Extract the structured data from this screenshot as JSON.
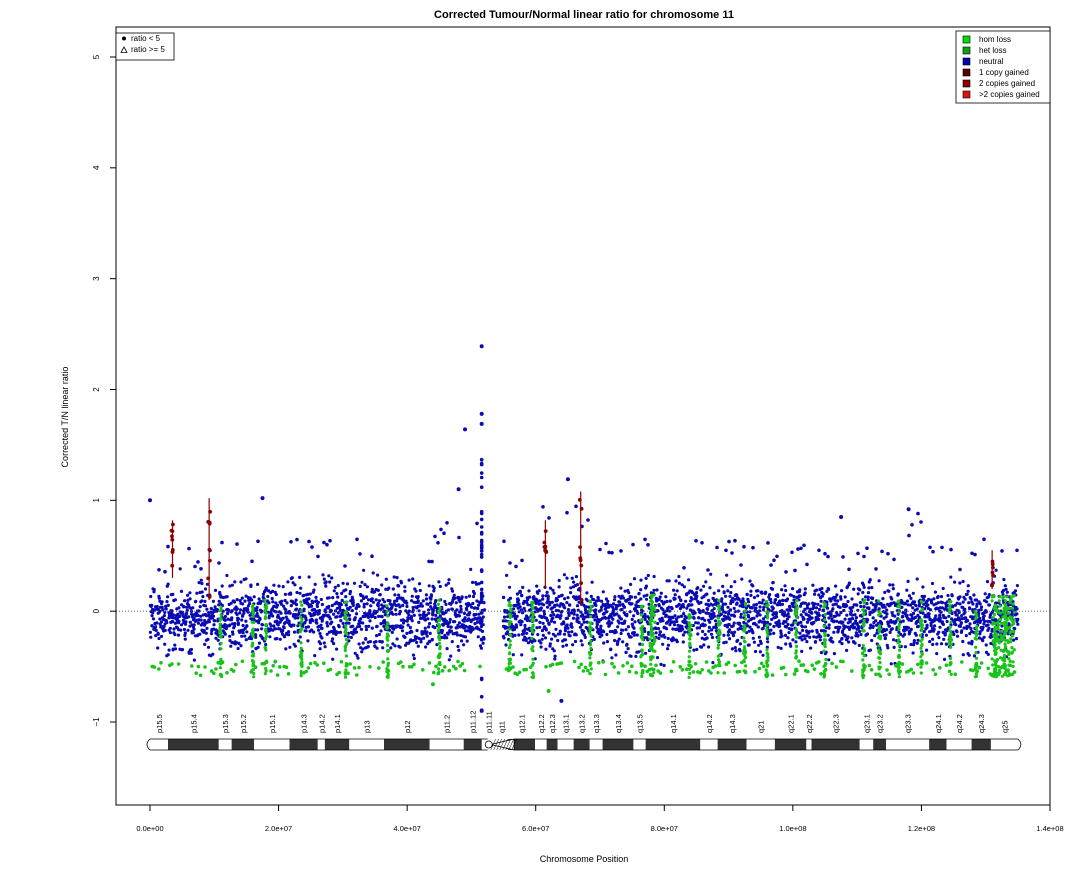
{
  "chart_data": {
    "type": "scatter",
    "title": "Corrected Tumour/Normal linear ratio for chromosome  11",
    "xlabel": "Chromosome Position",
    "ylabel": "Corrected T/N linear ratio",
    "xlim": [
      0,
      140000000
    ],
    "ylim": [
      -1.8,
      5.3
    ],
    "x_ticks": [
      {
        "value": 0,
        "label": "0.0e+00"
      },
      {
        "value": 20000000,
        "label": "2.0e+07"
      },
      {
        "value": 40000000,
        "label": "4.0e+07"
      },
      {
        "value": 60000000,
        "label": "6.0e+07"
      },
      {
        "value": 80000000,
        "label": "8.0e+07"
      },
      {
        "value": 100000000,
        "label": "1.0e+08"
      },
      {
        "value": 120000000,
        "label": "1.2e+08"
      },
      {
        "value": 140000000,
        "label": "1.4e+08"
      }
    ],
    "y_ticks": [
      {
        "value": -1,
        "label": "−1"
      },
      {
        "value": 0,
        "label": "0"
      },
      {
        "value": 1,
        "label": "1"
      },
      {
        "value": 2,
        "label": "2"
      },
      {
        "value": 3,
        "label": "3"
      },
      {
        "value": 4,
        "label": "4"
      },
      {
        "value": 5,
        "label": "5"
      }
    ],
    "reference_line": {
      "y": 0,
      "style": "dotted"
    },
    "shape_legend": {
      "placement": "top-left",
      "entries": [
        {
          "label": "ratio < 5",
          "symbol": "dot"
        },
        {
          "label": "ratio >= 5",
          "symbol": "triangle"
        }
      ]
    },
    "legend": {
      "placement": "top-right",
      "entries": [
        {
          "label": "hom loss",
          "color": "#00dd00"
        },
        {
          "label": "het loss",
          "color": "#10a010"
        },
        {
          "label": "neutral",
          "color": "#0000b0"
        },
        {
          "label": "1 copy gained",
          "color": "#5a0000"
        },
        {
          "label": "2 copies gained",
          "color": "#8b0000"
        },
        {
          "label": ">2 copies gained",
          "color": "#dd1111"
        }
      ]
    },
    "colors": {
      "neutral": "#0a0ab4",
      "loss": "#19c319",
      "gain": "#8b0000"
    },
    "centromere_gap": [
      52000000,
      54800000
    ],
    "outliers": [
      {
        "x": 51600000,
        "y": 2.39,
        "class": "neutral"
      },
      {
        "x": 51600000,
        "y": 1.78,
        "class": "neutral"
      },
      {
        "x": 51600000,
        "y": 1.69,
        "class": "neutral"
      },
      {
        "x": 49000000,
        "y": 1.64,
        "class": "neutral"
      },
      {
        "x": 48000000,
        "y": 1.1,
        "class": "neutral"
      },
      {
        "x": 65000000,
        "y": 1.19,
        "class": "neutral"
      },
      {
        "x": 17500000,
        "y": 1.02,
        "class": "neutral"
      },
      {
        "x": 0,
        "y": 1.0,
        "class": "neutral"
      },
      {
        "x": 107500000,
        "y": 0.85,
        "class": "neutral"
      },
      {
        "x": 118000000,
        "y": 0.92,
        "class": "neutral"
      },
      {
        "x": 51600000,
        "y": -0.9,
        "class": "neutral"
      },
      {
        "x": 62000000,
        "y": -0.72,
        "class": "loss"
      },
      {
        "x": 64000000,
        "y": -0.81,
        "class": "neutral"
      },
      {
        "x": 44000000,
        "y": -0.66,
        "class": "loss"
      }
    ],
    "gain_segments": [
      {
        "x": 3500000,
        "y_low": 0.3,
        "y_high": 0.82
      },
      {
        "x": 9200000,
        "y_low": 0.1,
        "y_high": 1.02
      },
      {
        "x": 61500000,
        "y_low": 0.2,
        "y_high": 0.82
      },
      {
        "x": 67000000,
        "y_low": 0.05,
        "y_high": 1.08
      },
      {
        "x": 131000000,
        "y_low": 0.2,
        "y_high": 0.55
      }
    ],
    "loss_segments": [
      {
        "x": 11000000
      },
      {
        "x": 16000000
      },
      {
        "x": 18000000
      },
      {
        "x": 23500000
      },
      {
        "x": 30500000
      },
      {
        "x": 37000000
      },
      {
        "x": 45000000
      },
      {
        "x": 56000000
      },
      {
        "x": 59500000
      },
      {
        "x": 68500000
      },
      {
        "x": 76500000
      },
      {
        "x": 78000000
      },
      {
        "x": 84000000
      },
      {
        "x": 88500000
      },
      {
        "x": 92500000
      },
      {
        "x": 96000000
      },
      {
        "x": 100500000
      },
      {
        "x": 105000000
      },
      {
        "x": 111000000
      },
      {
        "x": 113500000
      },
      {
        "x": 116500000
      },
      {
        "x": 120000000
      },
      {
        "x": 124500000
      },
      {
        "x": 128500000
      },
      {
        "x": 131500000
      },
      {
        "x": 133000000
      }
    ],
    "bands": [
      {
        "label": "p15.5",
        "start": 0,
        "end": 2800000,
        "stain": "gneg"
      },
      {
        "label": "p15.4",
        "start": 2800000,
        "end": 10700000,
        "stain": "gpos"
      },
      {
        "label": "p15.3",
        "start": 10700000,
        "end": 12700000,
        "stain": "gneg"
      },
      {
        "label": "p15.2",
        "start": 12700000,
        "end": 16200000,
        "stain": "gpos"
      },
      {
        "label": "p15.1",
        "start": 16200000,
        "end": 21700000,
        "stain": "gneg"
      },
      {
        "label": "p14.3",
        "start": 21700000,
        "end": 26100000,
        "stain": "gpos"
      },
      {
        "label": "p14.2",
        "start": 26100000,
        "end": 27200000,
        "stain": "gneg"
      },
      {
        "label": "p14.1",
        "start": 27200000,
        "end": 31000000,
        "stain": "gpos"
      },
      {
        "label": "p13",
        "start": 31000000,
        "end": 36400000,
        "stain": "gneg"
      },
      {
        "label": "p12",
        "start": 36400000,
        "end": 43500000,
        "stain": "gpos"
      },
      {
        "label": "p11.2",
        "start": 43500000,
        "end": 48800000,
        "stain": "gneg"
      },
      {
        "label": "p11.12",
        "start": 48800000,
        "end": 51600000,
        "stain": "gpos"
      },
      {
        "label": "p11.11",
        "start": 51600000,
        "end": 53700000,
        "stain": "acen"
      },
      {
        "label": "q11",
        "start": 53700000,
        "end": 55700000,
        "stain": "acen"
      },
      {
        "label": "q12.1",
        "start": 55700000,
        "end": 59900000,
        "stain": "gpos"
      },
      {
        "label": "q12.2",
        "start": 59900000,
        "end": 61700000,
        "stain": "gneg"
      },
      {
        "label": "q12.3",
        "start": 61700000,
        "end": 63400000,
        "stain": "gpos"
      },
      {
        "label": "q13.1",
        "start": 63400000,
        "end": 65900000,
        "stain": "gneg"
      },
      {
        "label": "q13.2",
        "start": 65900000,
        "end": 68400000,
        "stain": "gpos"
      },
      {
        "label": "q13.3",
        "start": 68400000,
        "end": 70400000,
        "stain": "gneg"
      },
      {
        "label": "q13.4",
        "start": 70400000,
        "end": 75200000,
        "stain": "gpos"
      },
      {
        "label": "q13.5",
        "start": 75200000,
        "end": 77100000,
        "stain": "gneg"
      },
      {
        "label": "q14.1",
        "start": 77100000,
        "end": 85600000,
        "stain": "gpos"
      },
      {
        "label": "q14.2",
        "start": 85600000,
        "end": 88300000,
        "stain": "gneg"
      },
      {
        "label": "q14.3",
        "start": 88300000,
        "end": 92800000,
        "stain": "gpos"
      },
      {
        "label": "q21",
        "start": 92800000,
        "end": 97200000,
        "stain": "gneg"
      },
      {
        "label": "q22.1",
        "start": 97200000,
        "end": 102100000,
        "stain": "gpos"
      },
      {
        "label": "q22.2",
        "start": 102100000,
        "end": 102900000,
        "stain": "gneg"
      },
      {
        "label": "q22.3",
        "start": 102900000,
        "end": 110400000,
        "stain": "gpos"
      },
      {
        "label": "q23.1",
        "start": 110400000,
        "end": 112500000,
        "stain": "gneg"
      },
      {
        "label": "q23.2",
        "start": 112500000,
        "end": 114500000,
        "stain": "gpos"
      },
      {
        "label": "q23.3",
        "start": 114500000,
        "end": 121200000,
        "stain": "gneg"
      },
      {
        "label": "q24.1",
        "start": 121200000,
        "end": 123900000,
        "stain": "gpos"
      },
      {
        "label": "q24.2",
        "start": 123900000,
        "end": 127800000,
        "stain": "gneg"
      },
      {
        "label": "q24.3",
        "start": 127800000,
        "end": 130800000,
        "stain": "gpos"
      },
      {
        "label": "q25",
        "start": 130800000,
        "end": 135000000,
        "stain": "gneg"
      }
    ]
  }
}
